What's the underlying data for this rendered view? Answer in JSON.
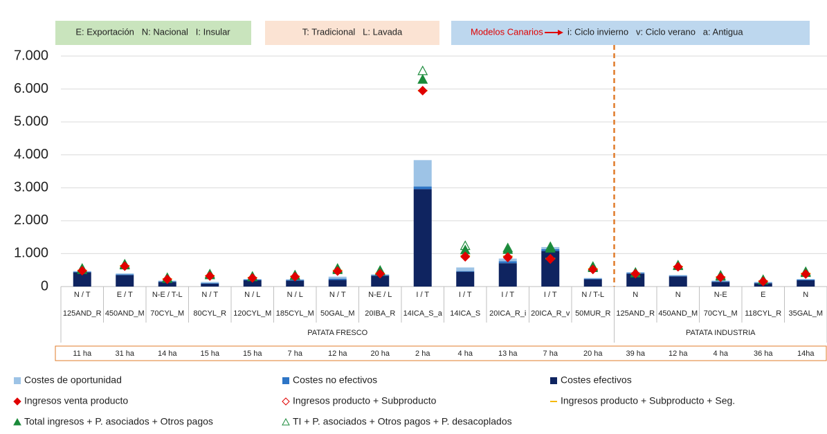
{
  "chart_data": {
    "type": "stacked_bar_markers",
    "notes": [
      "E: Exportación   N: Nacional   I: Insular",
      "T: Tradicional   L: Lavada"
    ],
    "canary_note": {
      "title": "Modelos Canarios",
      "text": "i: Ciclo invierno   v: Ciclo verano   a: Antigua"
    },
    "categories": [
      "125AND_R",
      "450AND_M",
      "70CYL_M",
      "80CYL_R",
      "120CYL_M",
      "185CYL_M",
      "50GAL_M",
      "20IBA_R",
      "14ICA_S_a",
      "14ICA_S",
      "20ICA_R_i",
      "20ICA_R_v",
      "50MUR_R",
      "125AND_R",
      "450AND_M",
      "70CYL_M",
      "118CYL_R",
      "35GAL_M"
    ],
    "sublabels": [
      "N / T",
      "E / T",
      "N-E / T-L",
      "N / T",
      "N / L",
      "N / L",
      "N / T",
      "N-E / L",
      "I / T",
      "I / T",
      "I / T",
      "I / T",
      "N / T-L",
      "N",
      "N",
      "N-E",
      "E",
      "N"
    ],
    "groups": [
      {
        "label": "PATATA FRESCO",
        "size": 13
      },
      {
        "label": "PATATA INDUSTRIA",
        "size": 5
      }
    ],
    "hectares": [
      "11 ha",
      "31 ha",
      "14 ha",
      "15 ha",
      "15 ha",
      "7 ha",
      "12 ha",
      "20 ha",
      "2 ha",
      "4 ha",
      "13 ha",
      "7 ha",
      "20 ha",
      "39 ha",
      "12 ha",
      "4 ha",
      "36 ha",
      "14ha"
    ],
    "ylim": [
      0,
      7000
    ],
    "yticks": [
      0,
      {
        "value": 1000,
        "label": "1.000"
      },
      {
        "value": 2000,
        "label": "2.000"
      },
      {
        "value": 3000,
        "label": "3.000"
      },
      {
        "value": 4000,
        "label": "4.000"
      },
      {
        "value": 5000,
        "label": "5.000"
      },
      {
        "value": 6000,
        "label": "6.000"
      },
      {
        "value": 7000,
        "label": "7.000"
      }
    ],
    "grid": true,
    "series": [
      {
        "name": "Costes de oportunidad",
        "kind": "bar",
        "color": "#9dc3e6",
        "values": [
          20,
          30,
          20,
          30,
          20,
          20,
          60,
          20,
          800,
          110,
          80,
          60,
          20,
          30,
          20,
          20,
          20,
          20
        ]
      },
      {
        "name": "Costes no efectivos",
        "kind": "bar",
        "color": "#2e75c6",
        "values": [
          20,
          20,
          20,
          20,
          20,
          20,
          40,
          20,
          80,
          20,
          60,
          60,
          20,
          20,
          20,
          20,
          20,
          20
        ]
      },
      {
        "name": "Costes efectivos",
        "kind": "bar",
        "color": "#0f2460",
        "values": [
          430,
          350,
          140,
          90,
          190,
          180,
          200,
          330,
          2960,
          450,
          710,
          1080,
          220,
          390,
          310,
          140,
          100,
          190
        ]
      },
      {
        "name": "Ingresos venta producto",
        "kind": "marker",
        "marker": "diamond",
        "filled": true,
        "color": "#e00000",
        "values": [
          480,
          620,
          220,
          320,
          260,
          300,
          470,
          390,
          5950,
          900,
          880,
          830,
          520,
          390,
          600,
          280,
          150,
          380
        ]
      },
      {
        "name": "Ingresos producto + Subproducto",
        "kind": "marker",
        "marker": "diamond",
        "filled": false,
        "color": "#e00000",
        "values": [
          480,
          620,
          220,
          320,
          260,
          300,
          470,
          390,
          5950,
          920,
          900,
          850,
          520,
          390,
          600,
          280,
          160,
          380
        ]
      },
      {
        "name": "Ingresos producto + Subproducto + Seg.",
        "kind": "marker",
        "marker": "dash",
        "filled": true,
        "color": "#f5b800",
        "values": [
          490,
          630,
          230,
          330,
          270,
          310,
          490,
          400,
          5950,
          930,
          920,
          850,
          540,
          400,
          610,
          290,
          170,
          400
        ]
      },
      {
        "name": "Total ingresos + P. asociados + Otros pagos",
        "kind": "marker",
        "marker": "triangle",
        "filled": true,
        "color": "#1a8a3a",
        "values": [
          500,
          640,
          230,
          340,
          280,
          320,
          500,
          460,
          6280,
          1100,
          1110,
          1150,
          560,
          400,
          620,
          300,
          180,
          410
        ]
      },
      {
        "name": "TI + P. asociados + Otros pagos + P. desacoplados",
        "kind": "marker",
        "marker": "triangle",
        "filled": false,
        "color": "#1a8a3a",
        "values": [
          540,
          670,
          260,
          370,
          300,
          340,
          540,
          480,
          6540,
          1230,
          1160,
          1200,
          600,
          420,
          640,
          330,
          200,
          440
        ]
      }
    ]
  }
}
